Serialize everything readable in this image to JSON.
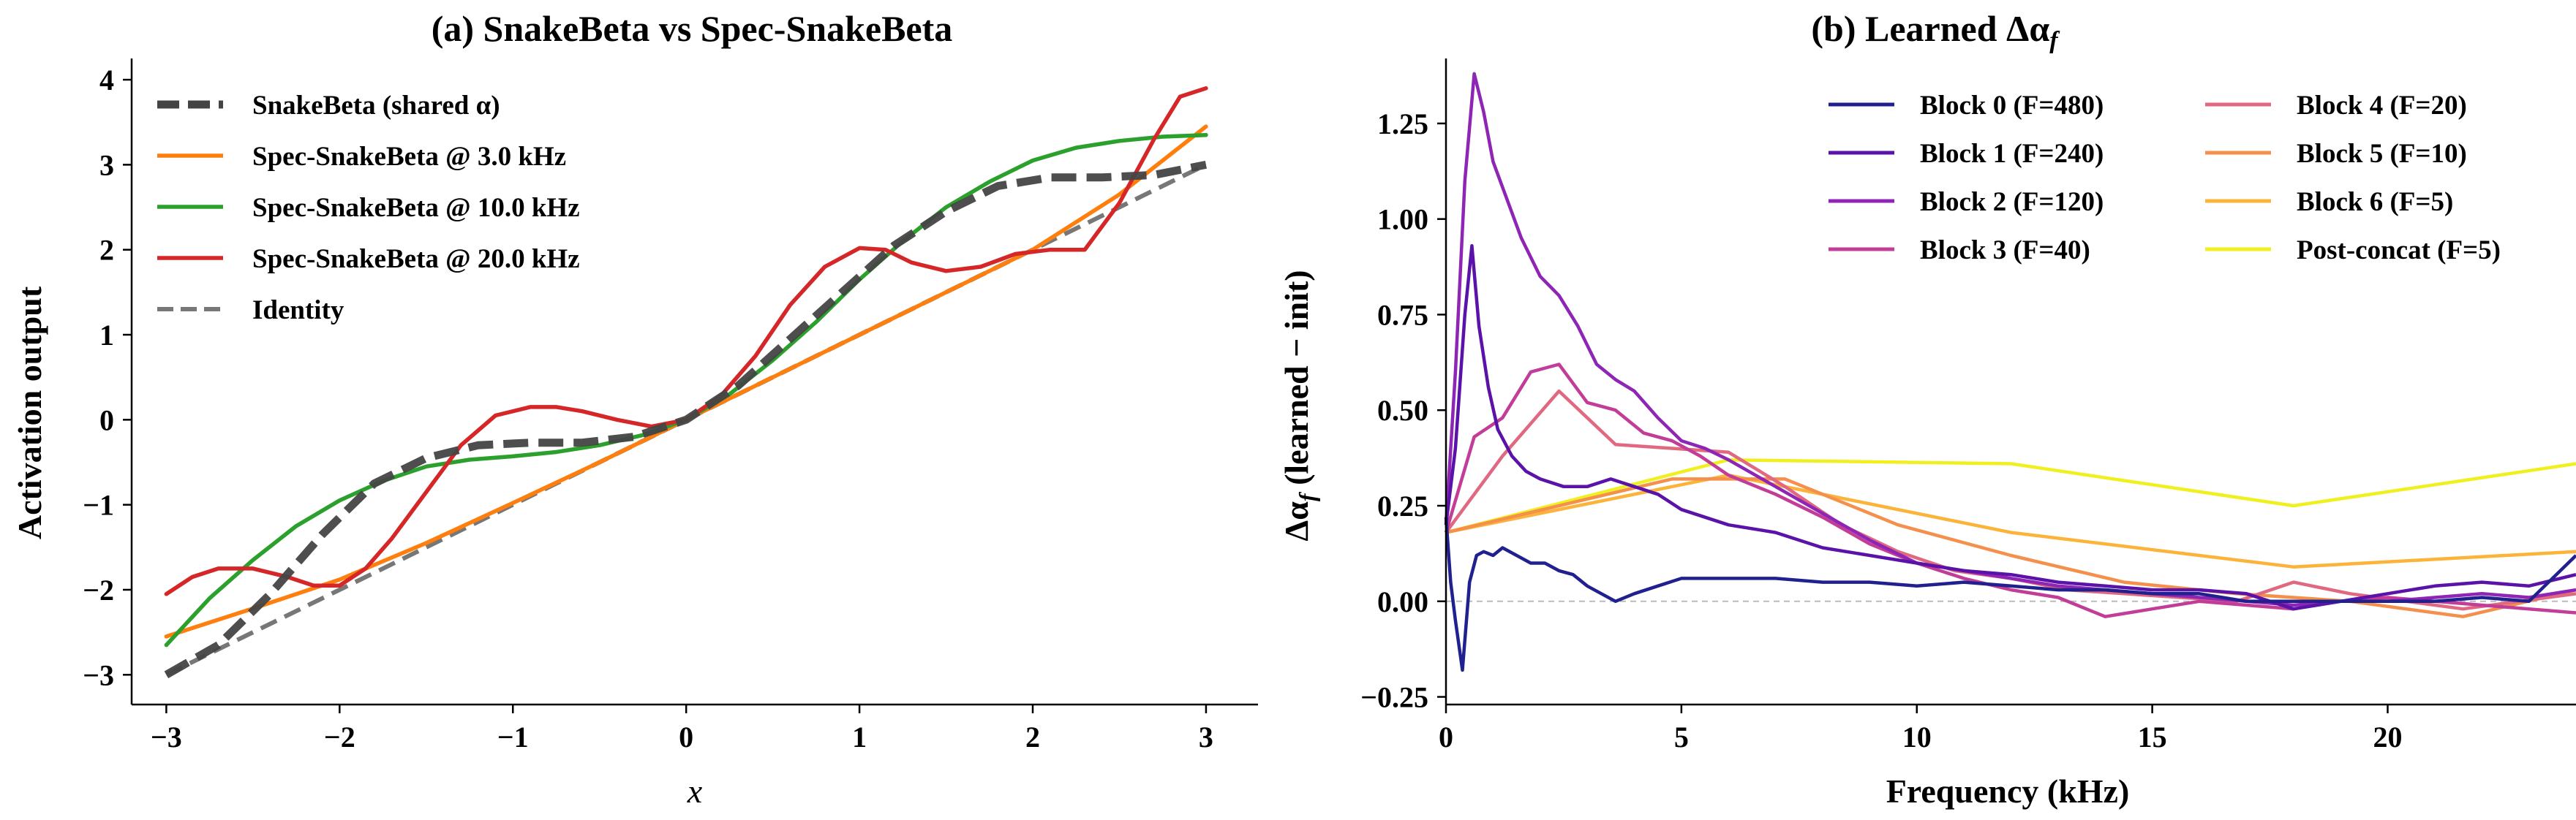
{
  "chart_data": [
    {
      "type": "line",
      "title": "(a) SnakeBeta vs Spec-SnakeBeta",
      "xlabel": "x",
      "ylabel": "Activation output",
      "xlim": [
        -3.2,
        3.3
      ],
      "ylim": [
        -3.35,
        4.25
      ],
      "xticks": [
        -3,
        -2,
        -1,
        0,
        1,
        2,
        3
      ],
      "yticks": [
        -3,
        -2,
        -1,
        0,
        1,
        2,
        3,
        4
      ],
      "legend_position": "upper-left",
      "series": [
        {
          "name": "SnakeBeta (shared α)",
          "color": "#444444",
          "style": "dashed-thick",
          "x": [
            -3,
            -2.7,
            -2.4,
            -2.1,
            -1.8,
            -1.5,
            -1.2,
            -0.9,
            -0.6,
            -0.3,
            0,
            0.3,
            0.6,
            0.9,
            1.2,
            1.5,
            1.8,
            2.1,
            2.4,
            2.7,
            3
          ],
          "y": [
            -3.0,
            -2.65,
            -2.05,
            -1.35,
            -0.75,
            -0.45,
            -0.3,
            -0.27,
            -0.27,
            -0.2,
            0.0,
            0.4,
            0.95,
            1.5,
            2.05,
            2.45,
            2.75,
            2.85,
            2.85,
            2.88,
            3.0
          ]
        },
        {
          "name": "Spec-SnakeBeta @ 3.0 kHz",
          "color": "#ff7f0e",
          "style": "solid",
          "x": [
            -3,
            -2.5,
            -2,
            -1.5,
            -1,
            -0.5,
            0,
            0.5,
            1,
            1.5,
            2,
            2.5,
            3
          ],
          "y": [
            -2.55,
            -2.22,
            -1.88,
            -1.45,
            -0.98,
            -0.5,
            0.0,
            0.5,
            1.0,
            1.5,
            2.0,
            2.65,
            3.45
          ]
        },
        {
          "name": "Spec-SnakeBeta @ 10.0 kHz",
          "color": "#2ca02c",
          "style": "solid",
          "x": [
            -3,
            -2.75,
            -2.5,
            -2.25,
            -2,
            -1.75,
            -1.5,
            -1.25,
            -1,
            -0.75,
            -0.5,
            -0.25,
            0,
            0.25,
            0.5,
            0.75,
            1,
            1.25,
            1.5,
            1.75,
            2,
            2.25,
            2.5,
            2.75,
            3
          ],
          "y": [
            -2.65,
            -2.1,
            -1.65,
            -1.25,
            -0.95,
            -0.72,
            -0.55,
            -0.47,
            -0.43,
            -0.38,
            -0.3,
            -0.18,
            0.0,
            0.3,
            0.7,
            1.15,
            1.65,
            2.1,
            2.5,
            2.8,
            3.05,
            3.2,
            3.28,
            3.33,
            3.35
          ]
        },
        {
          "name": "Spec-SnakeBeta @ 20.0 kHz",
          "color": "#d62728",
          "style": "solid",
          "x": [
            -3,
            -2.85,
            -2.7,
            -2.5,
            -2.3,
            -2.15,
            -2,
            -1.85,
            -1.7,
            -1.5,
            -1.3,
            -1.1,
            -0.9,
            -0.75,
            -0.6,
            -0.4,
            -0.2,
            0,
            0.2,
            0.4,
            0.6,
            0.8,
            1,
            1.15,
            1.3,
            1.5,
            1.7,
            1.9,
            2.1,
            2.3,
            2.5,
            2.7,
            2.85,
            3
          ],
          "y": [
            -2.05,
            -1.85,
            -1.75,
            -1.75,
            -1.85,
            -1.95,
            -1.95,
            -1.75,
            -1.4,
            -0.85,
            -0.3,
            0.05,
            0.15,
            0.15,
            0.1,
            0.0,
            -0.08,
            0.0,
            0.28,
            0.75,
            1.35,
            1.8,
            2.02,
            2.0,
            1.85,
            1.75,
            1.8,
            1.95,
            2.0,
            2.0,
            2.55,
            3.3,
            3.8,
            3.9
          ]
        },
        {
          "name": "Identity",
          "color": "#777777",
          "style": "dashed",
          "x": [
            -3,
            3
          ],
          "y": [
            -3,
            3
          ]
        }
      ]
    },
    {
      "type": "line",
      "title": "(b) Learned Δα",
      "title_subscript": "f",
      "xlabel": "Frequency (kHz)",
      "ylabel": "Δα",
      "ylabel_subscript": "f",
      "ylabel_suffix": " (learned − init)",
      "xlim": [
        0,
        24
      ],
      "ylim": [
        -0.27,
        1.42
      ],
      "xticks": [
        0,
        5,
        10,
        15,
        20
      ],
      "yticks": [
        -0.25,
        0.0,
        0.25,
        0.5,
        0.75,
        1.0,
        1.25
      ],
      "ytick_labels": [
        "−0.25",
        "0.00",
        "0.25",
        "0.50",
        "0.75",
        "1.00",
        "1.25"
      ],
      "grid": false,
      "zero_reference_line": true,
      "legend_position": "upper-right",
      "legend_columns": 2,
      "series": [
        {
          "name": "Block 0 (F=480)",
          "color": "#20208f",
          "x": [
            0,
            0.1,
            0.2,
            0.35,
            0.5,
            0.65,
            0.8,
            1,
            1.2,
            1.5,
            1.8,
            2.1,
            2.4,
            2.7,
            3,
            3.3,
            3.6,
            4,
            4.5,
            5,
            6,
            7,
            8,
            9,
            10,
            11,
            12,
            13,
            14,
            15,
            16,
            17,
            18,
            19,
            20,
            21,
            22,
            23,
            24
          ],
          "y": [
            0.22,
            0.05,
            -0.05,
            -0.18,
            0.05,
            0.12,
            0.13,
            0.12,
            0.14,
            0.12,
            0.1,
            0.1,
            0.08,
            0.07,
            0.04,
            0.02,
            0.0,
            0.02,
            0.04,
            0.06,
            0.06,
            0.06,
            0.05,
            0.05,
            0.04,
            0.05,
            0.04,
            0.03,
            0.03,
            0.02,
            0.02,
            0.0,
            0.0,
            0.0,
            0.0,
            0.0,
            0.01,
            0.0,
            0.12
          ]
        },
        {
          "name": "Block 1 (F=240)",
          "color": "#5a12a8",
          "x": [
            0,
            0.2,
            0.4,
            0.55,
            0.7,
            0.9,
            1.1,
            1.4,
            1.7,
            2,
            2.5,
            3,
            3.5,
            4,
            4.5,
            5,
            6,
            7,
            8,
            9,
            10,
            11,
            12,
            13,
            14,
            15,
            16,
            17,
            18,
            19,
            20,
            21,
            22,
            23,
            24
          ],
          "y": [
            0.2,
            0.4,
            0.75,
            0.93,
            0.72,
            0.56,
            0.45,
            0.38,
            0.34,
            0.32,
            0.3,
            0.3,
            0.32,
            0.3,
            0.28,
            0.24,
            0.2,
            0.18,
            0.14,
            0.12,
            0.1,
            0.08,
            0.07,
            0.05,
            0.04,
            0.03,
            0.03,
            0.02,
            -0.02,
            0.0,
            0.02,
            0.04,
            0.05,
            0.04,
            0.07
          ]
        },
        {
          "name": "Block 2 (F=120)",
          "color": "#8e25b4",
          "x": [
            0,
            0.2,
            0.4,
            0.6,
            0.8,
            1,
            1.3,
            1.6,
            2,
            2.4,
            2.8,
            3.2,
            3.6,
            4,
            4.5,
            5,
            5.5,
            6,
            7,
            8,
            9,
            10,
            11,
            12,
            13,
            14,
            15,
            16,
            17,
            18,
            19,
            20,
            21,
            22,
            23,
            24
          ],
          "y": [
            0.2,
            0.6,
            1.1,
            1.38,
            1.28,
            1.15,
            1.05,
            0.95,
            0.85,
            0.8,
            0.72,
            0.62,
            0.58,
            0.55,
            0.48,
            0.42,
            0.4,
            0.37,
            0.3,
            0.23,
            0.16,
            0.1,
            0.08,
            0.06,
            0.04,
            0.03,
            0.02,
            0.01,
            0.0,
            -0.01,
            0.0,
            0.0,
            0.01,
            0.02,
            0.01,
            0.03
          ]
        },
        {
          "name": "Block 3 (F=40)",
          "color": "#c23d97",
          "x": [
            0,
            0.6,
            1.2,
            1.8,
            2.4,
            3.0,
            3.6,
            4.2,
            4.8,
            5.4,
            6,
            7,
            8,
            9,
            10,
            11,
            12,
            13,
            14,
            15,
            16,
            17,
            18,
            19,
            20,
            21,
            22,
            23,
            24
          ],
          "y": [
            0.18,
            0.43,
            0.48,
            0.6,
            0.62,
            0.52,
            0.5,
            0.44,
            0.42,
            0.38,
            0.33,
            0.28,
            0.22,
            0.15,
            0.1,
            0.06,
            0.03,
            0.01,
            -0.04,
            -0.02,
            0.0,
            -0.01,
            -0.02,
            0.0,
            0.01,
            0.0,
            -0.01,
            -0.02,
            -0.03
          ]
        },
        {
          "name": "Block 4 (F=20)",
          "color": "#e06880",
          "x": [
            0,
            1.2,
            2.4,
            3.6,
            4.8,
            6,
            7.2,
            8.4,
            9.6,
            10.8,
            12,
            13.2,
            14.4,
            15.6,
            16.8,
            18,
            19.2,
            20.4,
            21.6,
            22.8,
            24
          ],
          "y": [
            0.18,
            0.38,
            0.55,
            0.41,
            0.4,
            0.39,
            0.3,
            0.2,
            0.13,
            0.08,
            0.06,
            0.03,
            0.02,
            0.01,
            0.0,
            0.05,
            0.02,
            0.0,
            -0.02,
            0.0,
            0.02
          ]
        },
        {
          "name": "Block 5 (F=10)",
          "color": "#f4904c",
          "x": [
            0,
            2.4,
            4.8,
            7.2,
            9.6,
            12,
            14.4,
            16.8,
            19.2,
            21.6,
            24
          ],
          "y": [
            0.18,
            0.25,
            0.32,
            0.32,
            0.2,
            0.12,
            0.05,
            0.02,
            0.0,
            -0.04,
            0.03
          ]
        },
        {
          "name": "Block 6 (F=5)",
          "color": "#fbb33a",
          "x": [
            0,
            6,
            12,
            18,
            24
          ],
          "y": [
            0.18,
            0.33,
            0.18,
            0.09,
            0.13
          ]
        },
        {
          "name": "Post-concat (F=5)",
          "color": "#f0f020",
          "x": [
            0,
            6,
            12,
            18,
            24
          ],
          "y": [
            0.18,
            0.37,
            0.36,
            0.25,
            0.36
          ]
        }
      ]
    }
  ]
}
